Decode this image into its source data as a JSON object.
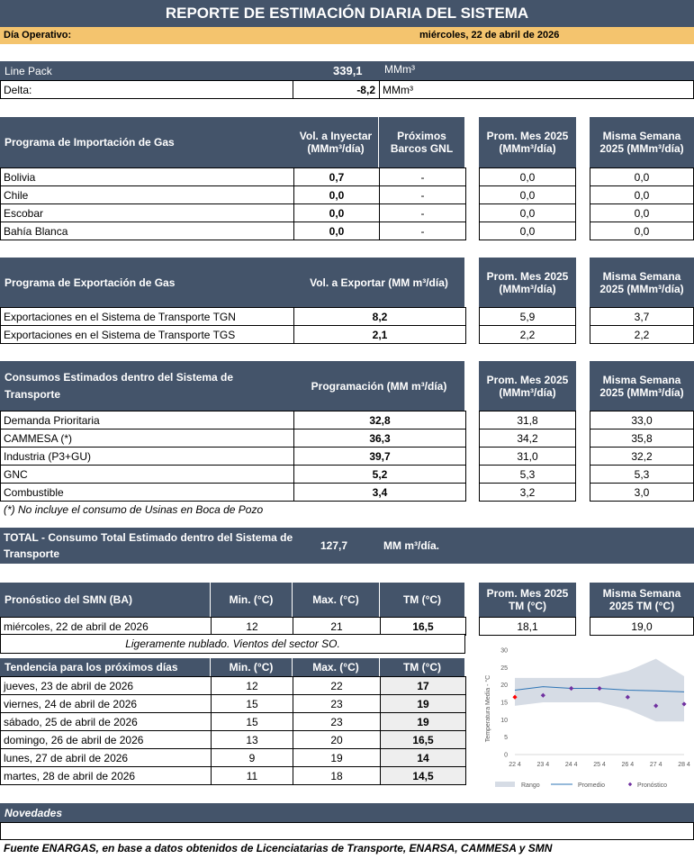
{
  "title": "REPORTE DE ESTIMACIÓN DIARIA DEL SISTEMA",
  "dia_operativo": {
    "label": "Día Operativo:",
    "value": "miércoles, 22 de abril de 2026"
  },
  "linepack": {
    "label": "Line Pack",
    "value": "339,1",
    "unit": "MMm³",
    "delta_label": "Delta:",
    "delta_value": "-8,2",
    "delta_unit": "MMm³"
  },
  "importacion": {
    "title": "Programa de Importación de Gas",
    "col_vol": "Vol. a Inyectar (MMm³/día)",
    "col_barcos": "Próximos Barcos GNL",
    "col_prom": "Prom. Mes 2025 (MMm³/día)",
    "col_misma": "Misma Semana 2025 (MMm³/día)",
    "rows": [
      {
        "name": "Bolivia",
        "vol": "0,7",
        "barcos": "-",
        "prom": "0,0",
        "misma": "0,0"
      },
      {
        "name": "Chile",
        "vol": "0,0",
        "barcos": "-",
        "prom": "0,0",
        "misma": "0,0"
      },
      {
        "name": "Escobar",
        "vol": "0,0",
        "barcos": "-",
        "prom": "0,0",
        "misma": "0,0"
      },
      {
        "name": "Bahía Blanca",
        "vol": "0,0",
        "barcos": "-",
        "prom": "0,0",
        "misma": "0,0"
      }
    ]
  },
  "exportacion": {
    "title": "Programa de Exportación de Gas",
    "col_vol": "Vol. a Exportar (MM m³/día)",
    "col_prom": "Prom. Mes 2025 (MMm³/día)",
    "col_misma": "Misma Semana 2025 (MMm³/día)",
    "rows": [
      {
        "name": "Exportaciones en el Sistema de Transporte TGN",
        "vol": "8,2",
        "prom": "5,9",
        "misma": "3,7"
      },
      {
        "name": "Exportaciones en el Sistema de Transporte TGS",
        "vol": "2,1",
        "prom": "2,2",
        "misma": "2,2"
      }
    ]
  },
  "consumos": {
    "title": "Consumos Estimados dentro del Sistema de Transporte",
    "col_prog": "Programación (MM m³/día)",
    "col_prom": "Prom. Mes 2025 (MMm³/día)",
    "col_misma": "Misma Semana 2025 (MMm³/día)",
    "rows": [
      {
        "name": "Demanda Prioritaria",
        "prog": "32,8",
        "prom": "31,8",
        "misma": "33,0"
      },
      {
        "name": "CAMMESA (*)",
        "prog": "36,3",
        "prom": "34,2",
        "misma": "35,8"
      },
      {
        "name": "Industria (P3+GU)",
        "prog": "39,7",
        "prom": "31,0",
        "misma": "32,2"
      },
      {
        "name": "GNC",
        "prog": "5,2",
        "prom": "5,3",
        "misma": "5,3"
      },
      {
        "name": "Combustible",
        "prog": "3,4",
        "prom": "3,2",
        "misma": "3,0"
      }
    ],
    "note": "(*) No incluye el consumo de Usinas en Boca de Pozo"
  },
  "total": {
    "label": "TOTAL - Consumo Total Estimado dentro del Sistema de Transporte",
    "value": "127,7",
    "unit": "MM m³/día."
  },
  "pronostico": {
    "title": "Pronóstico del SMN (BA)",
    "col_min": "Min. (°C)",
    "col_max": "Max. (°C)",
    "col_tm": "TM (°C)",
    "col_prom": "Prom. Mes 2025 TM (°C)",
    "col_misma": "Misma Semana 2025 TM (°C)",
    "row": {
      "date": "miércoles, 22 de abril de 2026",
      "min": "12",
      "max": "21",
      "tm": "16,5",
      "prom": "18,1",
      "misma": "19,0"
    },
    "desc": "Ligeramente nublado. Vientos del sector SO."
  },
  "tendencia": {
    "title": "Tendencia para los próximos días",
    "col_min": "Min. (°C)",
    "col_max": "Max. (°C)",
    "col_tm": "TM (°C)",
    "rows": [
      {
        "date": "jueves, 23 de abril de 2026",
        "min": "12",
        "max": "22",
        "tm": "17"
      },
      {
        "date": "viernes, 24 de abril de 2026",
        "min": "15",
        "max": "23",
        "tm": "19"
      },
      {
        "date": "sábado, 25 de abril de 2026",
        "min": "15",
        "max": "23",
        "tm": "19"
      },
      {
        "date": "domingo, 26 de abril de 2026",
        "min": "13",
        "max": "20",
        "tm": "16,5"
      },
      {
        "date": "lunes, 27 de abril de 2026",
        "min": "9",
        "max": "19",
        "tm": "14"
      },
      {
        "date": "martes, 28 de abril de 2026",
        "min": "11",
        "max": "18",
        "tm": "14,5"
      }
    ]
  },
  "chart_data": {
    "type": "line",
    "ylabel": "Temperatura Media - °C",
    "categories": [
      "22 4",
      "23 4",
      "24 4",
      "25 4",
      "26 4",
      "27 4",
      "28 4"
    ],
    "ylim": [
      0,
      30
    ],
    "yticks": [
      "0",
      "5",
      "10",
      "15",
      "20",
      "25",
      "30"
    ],
    "series": [
      {
        "name": "Rango",
        "kind": "band",
        "color": "#d6dce5",
        "low": [
          14,
          15,
          15,
          15,
          13,
          9.5,
          9.5
        ],
        "high": [
          22,
          22,
          22,
          22,
          24,
          27.5,
          22.5
        ]
      },
      {
        "name": "Promedio",
        "kind": "line",
        "color": "#2e75b6",
        "values": [
          18.5,
          19.5,
          19,
          19,
          18.5,
          18.3,
          18
        ]
      },
      {
        "name": "Pronóstico",
        "kind": "points",
        "color": "#7030a0",
        "values": [
          16.5,
          17,
          19,
          19,
          16.5,
          14,
          14.5
        ],
        "first_color": "#ff0000"
      }
    ],
    "legend_position": "bottom",
    "grid": false
  },
  "novedades": {
    "title": "Novedades"
  },
  "fuente": "Fuente ENARGAS, en base a datos obtenidos de Licenciatarias de Transporte, ENARSA, CAMMESA y SMN"
}
